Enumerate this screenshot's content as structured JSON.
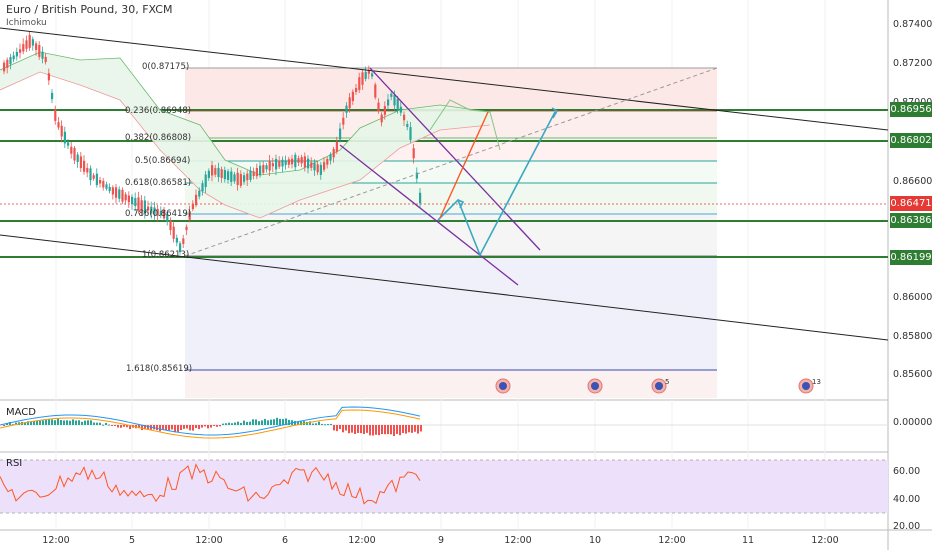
{
  "header": {
    "symbol": "Euro / British Pound, 30, FXCM",
    "indicator": "Ichimoku"
  },
  "panels": {
    "macd": "MACD",
    "rsi": "RSI"
  },
  "price_axis": [
    "0.87400",
    "0.87200",
    "0.87000",
    "0.86600",
    "0.86000",
    "0.85800",
    "0.85600"
  ],
  "price_tags": [
    {
      "value": "0.86956",
      "color": "#2e7d32"
    },
    {
      "value": "0.86802",
      "color": "#2e7d32"
    },
    {
      "value": "0.86471",
      "color": "#e53935"
    },
    {
      "value": "0.86386",
      "color": "#2e7d32"
    },
    {
      "value": "0.86199",
      "color": "#2e7d32"
    }
  ],
  "macd_axis": [
    "0.00000"
  ],
  "rsi_axis": [
    "60.00",
    "40.00",
    "20.00"
  ],
  "time_axis": [
    "12:00",
    "5",
    "12:00",
    "6",
    "12:00",
    "9",
    "12:00",
    "10",
    "12:00",
    "11",
    "12:00"
  ],
  "fib_levels": [
    {
      "label": "0(0.87175)"
    },
    {
      "label": "0.236(0.86948)"
    },
    {
      "label": "0.382(0.86808)"
    },
    {
      "label": "0.5(0.86694)"
    },
    {
      "label": "0.618(0.86581)"
    },
    {
      "label": "0.786(0.86419)"
    },
    {
      "label": "1(0.86213)"
    },
    {
      "label": "1.618(0.85619)"
    }
  ],
  "event_badges": [
    "5",
    "13"
  ],
  "colors": {
    "green_level": "#2e7d32",
    "last_price": "#e53935",
    "bull": "#26a69a",
    "bear": "#ef5350",
    "channel": "#7b2fa0",
    "projection": "#3aa8c1",
    "rsi_band": "#ede0fb"
  }
}
